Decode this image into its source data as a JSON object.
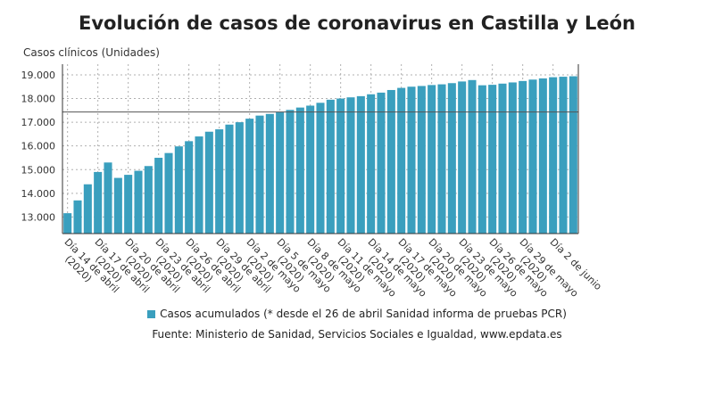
{
  "title": "Evolución de casos de coronavirus en Castilla y León",
  "colors": {
    "bar": "#3a9fbe",
    "grid": "#b0b0b0",
    "refline": "#555555"
  },
  "legend_label": "Casos acumulados (* desde el 26 de abril Sanidad informa de pruebas PCR)",
  "source": "Fuente: Ministerio de Sanidad, Servicios Sociales e Igualdad, www.epdata.es",
  "chart_data": {
    "type": "bar",
    "title": "Evolución de casos de coronavirus en Castilla y León",
    "ylabel": "Casos clínicos (Unidades)",
    "ylim": [
      12300,
      19450
    ],
    "yticks": [
      13000,
      14000,
      15000,
      16000,
      17000,
      18000,
      19000
    ],
    "ytick_labels": [
      "13.000",
      "14.000",
      "15.000",
      "16.000",
      "17.000",
      "18.000",
      "19.000"
    ],
    "reference_line": 17430,
    "grid": true,
    "legend_position": "bottom",
    "x_tick_labels": [
      "Día 14 de abril (2020)",
      "Día 17 de abril (2020)",
      "Día 20 de abril (2020)",
      "Día 23 de abril (2020)",
      "Día 26 de abril (2020)",
      "Día 29 de abril (2020)",
      "Día 2 de mayo (2020)",
      "Día 5 de mayo (2020)",
      "Día 8 de mayo (2020)",
      "Día 11 de mayo (2020)",
      "Día 14 de mayo (2020)",
      "Día 17 de mayo (2020)",
      "Día 20 de mayo (2020)",
      "Día 23 de mayo (2020)",
      "Día 26 de mayo (2020)",
      "Día 29 de mayo (2020)",
      "Día 2 de junio"
    ],
    "series": [
      {
        "name": "Casos acumulados (* desde el 26 de abril Sanidad informa de pruebas PCR)",
        "values": [
          13160,
          13700,
          14380,
          14900,
          15300,
          14650,
          14780,
          14950,
          15150,
          15500,
          15700,
          15980,
          16200,
          16400,
          16600,
          16700,
          16900,
          17000,
          17150,
          17280,
          17350,
          17420,
          17520,
          17620,
          17700,
          17820,
          17950,
          18000,
          18050,
          18100,
          18180,
          18250,
          18360,
          18450,
          18500,
          18530,
          18570,
          18600,
          18650,
          18720,
          18780,
          18560,
          18580,
          18630,
          18680,
          18740,
          18800,
          18850,
          18900,
          18920,
          18940
        ]
      }
    ]
  }
}
